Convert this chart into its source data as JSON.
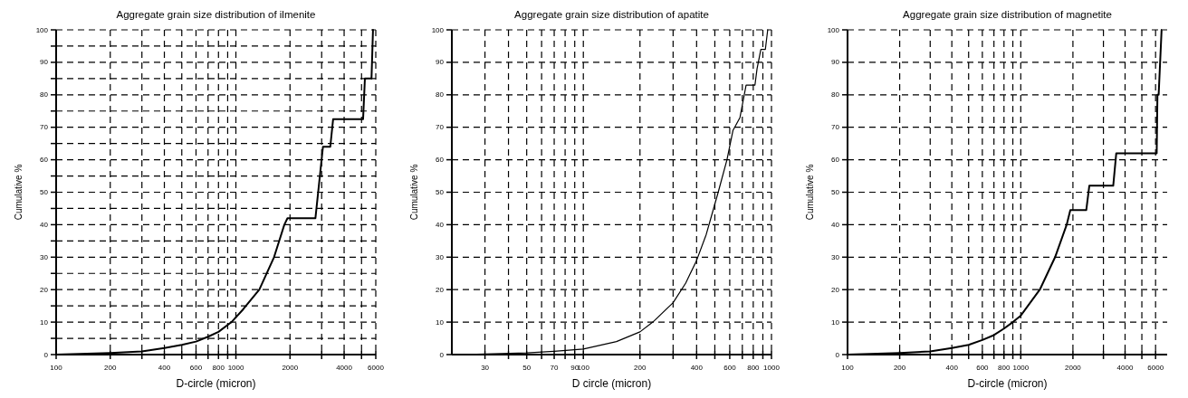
{
  "chart_data": [
    {
      "type": "line",
      "title": "Aggregate grain size distribution of ilmenite",
      "xlabel": "D-circle (micron)",
      "ylabel": "Cumulative %",
      "log": "x",
      "grid": true,
      "line_style": "solid",
      "marker": "none",
      "xlim": [
        100,
        6000
      ],
      "xticks": [
        100,
        200,
        {
          "value": 300,
          "label": null
        },
        400,
        {
          "value": 500,
          "label": null
        },
        600,
        {
          "value": 700,
          "label": null
        },
        800,
        {
          "value": 900,
          "label": null
        },
        1000,
        2000,
        {
          "value": 3000,
          "label": null
        },
        4000,
        {
          "value": 5000,
          "label": null
        },
        6000
      ],
      "ylim": [
        0,
        100
      ],
      "yticks": [
        0,
        {
          "value": 5,
          "label": null
        },
        10,
        {
          "value": 15,
          "label": null
        },
        20,
        {
          "value": 25,
          "label": null
        },
        30,
        {
          "value": 35,
          "label": null
        },
        40,
        {
          "value": 45,
          "label": null
        },
        50,
        {
          "value": 55,
          "label": null
        },
        60,
        {
          "value": 65,
          "label": null
        },
        70,
        {
          "value": 75,
          "label": null
        },
        80,
        {
          "value": 85,
          "label": null
        },
        90,
        {
          "value": 95,
          "label": null
        },
        100
      ],
      "series": [
        {
          "color": "#000000",
          "x": [
            100,
            200,
            300,
            400,
            500,
            600,
            700,
            800,
            945,
            1100,
            1350,
            1630,
            1860,
            1936,
            2770,
            3050,
            3350,
            3475,
            5100,
            5220,
            5680,
            5790
          ],
          "values": [
            0,
            0.5,
            1,
            2,
            3,
            4,
            5.5,
            7,
            10,
            14,
            20,
            30,
            40,
            42,
            42,
            64,
            64,
            72.5,
            72.5,
            85,
            85,
            100
          ]
        }
      ]
    },
    {
      "type": "line",
      "title": "Aggregate grain size distribution of apatite",
      "xlabel": "D circle (micron)",
      "ylabel": "Cumulative %",
      "log": "x",
      "grid": true,
      "line_style": "solid",
      "marker": "none",
      "xlim": [
        20,
        1000
      ],
      "xticks": [
        30,
        {
          "value": 40,
          "label": null
        },
        50,
        {
          "value": 60,
          "label": null
        },
        70,
        {
          "value": 80,
          "label": null
        },
        90,
        100,
        200,
        {
          "value": 300,
          "label": null
        },
        400,
        {
          "value": 500,
          "label": null
        },
        600,
        {
          "value": 700,
          "label": null
        },
        800,
        {
          "value": 900,
          "label": null
        },
        1000
      ],
      "ylim": [
        0,
        100
      ],
      "yticks": [
        0,
        10,
        20,
        30,
        40,
        50,
        60,
        70,
        80,
        90,
        100
      ],
      "series": [
        {
          "color": "#000000",
          "x": [
            22,
            30,
            50,
            70,
            100,
            150,
            200,
            234,
            300,
            350,
            400,
            450,
            521,
            580,
            624,
            680,
            733,
            817,
            838,
            878,
            928,
            955
          ],
          "values": [
            0,
            0.2,
            0.5,
            1,
            1.7,
            4,
            7,
            10,
            16,
            22,
            29,
            37,
            50,
            60,
            69,
            73,
            83,
            83,
            88,
            94,
            94,
            100
          ]
        }
      ]
    },
    {
      "type": "line",
      "title": "Aggregate grain size  distribution of magnetite",
      "xlabel": "D-circle (micron)",
      "ylabel": "Cumulative  %",
      "log": "x",
      "grid": true,
      "line_style": "solid",
      "marker": "none",
      "xlim": [
        100,
        7000
      ],
      "xticks": [
        100,
        200,
        {
          "value": 300,
          "label": null
        },
        400,
        {
          "value": 500,
          "label": null
        },
        600,
        {
          "value": 700,
          "label": null
        },
        800,
        {
          "value": 900,
          "label": null
        },
        1000,
        2000,
        {
          "value": 3000,
          "label": null
        },
        4000,
        {
          "value": 5000,
          "label": null
        },
        6000
      ],
      "ylim": [
        0,
        100
      ],
      "yticks": [
        0,
        10,
        20,
        30,
        40,
        50,
        60,
        70,
        80,
        90,
        100
      ],
      "series": [
        {
          "color": "#000000",
          "x": [
            100,
            200,
            300,
            400,
            500,
            600,
            700,
            800,
            900,
            1000,
            1288,
            1578,
            1841,
            1932,
            2389,
            2487,
            3417,
            3558,
            6090,
            6150,
            6250,
            6500
          ],
          "values": [
            0,
            0.5,
            1,
            2,
            3,
            4.5,
            6,
            8,
            10,
            12,
            20,
            30,
            40,
            44.5,
            44.5,
            52,
            52,
            62,
            62,
            80,
            80,
            100
          ]
        }
      ]
    }
  ]
}
